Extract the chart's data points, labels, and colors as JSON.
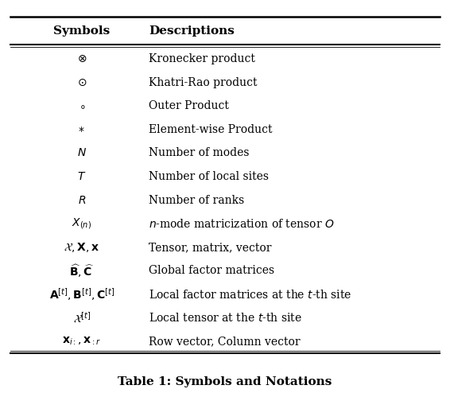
{
  "title": "Table 1: Symbols and Notations",
  "header": [
    "Symbols",
    "Descriptions"
  ],
  "rows": [
    [
      "$\\otimes$",
      "Kronecker product"
    ],
    [
      "$\\odot$",
      "Khatri-Rao product"
    ],
    [
      "$\\circ$",
      "Outer Product"
    ],
    [
      "$*$",
      "Element-wise Product"
    ],
    [
      "$N$",
      "Number of modes"
    ],
    [
      "$T$",
      "Number of local sites"
    ],
    [
      "$R$",
      "Number of ranks"
    ],
    [
      "$X_{(n)}$",
      "$n$-mode matricization of tensor $O$"
    ],
    [
      "$\\mathcal{X}, \\mathbf{X}, \\mathbf{x}$",
      "Tensor, matrix, vector"
    ],
    [
      "$\\widehat{\\mathbf{B}}, \\widehat{\\mathbf{C}}$",
      "Global factor matrices"
    ],
    [
      "$\\mathbf{A}^{[t]}, \\mathbf{B}^{[t]}, \\mathbf{C}^{[t]}$",
      "Local factor matrices at the $t$-th site"
    ],
    [
      "$\\mathcal{X}^{[t]}$",
      "Local tensor at the $t$-th site"
    ],
    [
      "$\\mathbf{x}_{i:}, \\mathbf{x}_{:r}$",
      "Row vector, Column vector"
    ]
  ],
  "bg_color": "#ffffff",
  "text_color": "#000000",
  "figsize": [
    5.66,
    4.94
  ],
  "dpi": 100
}
